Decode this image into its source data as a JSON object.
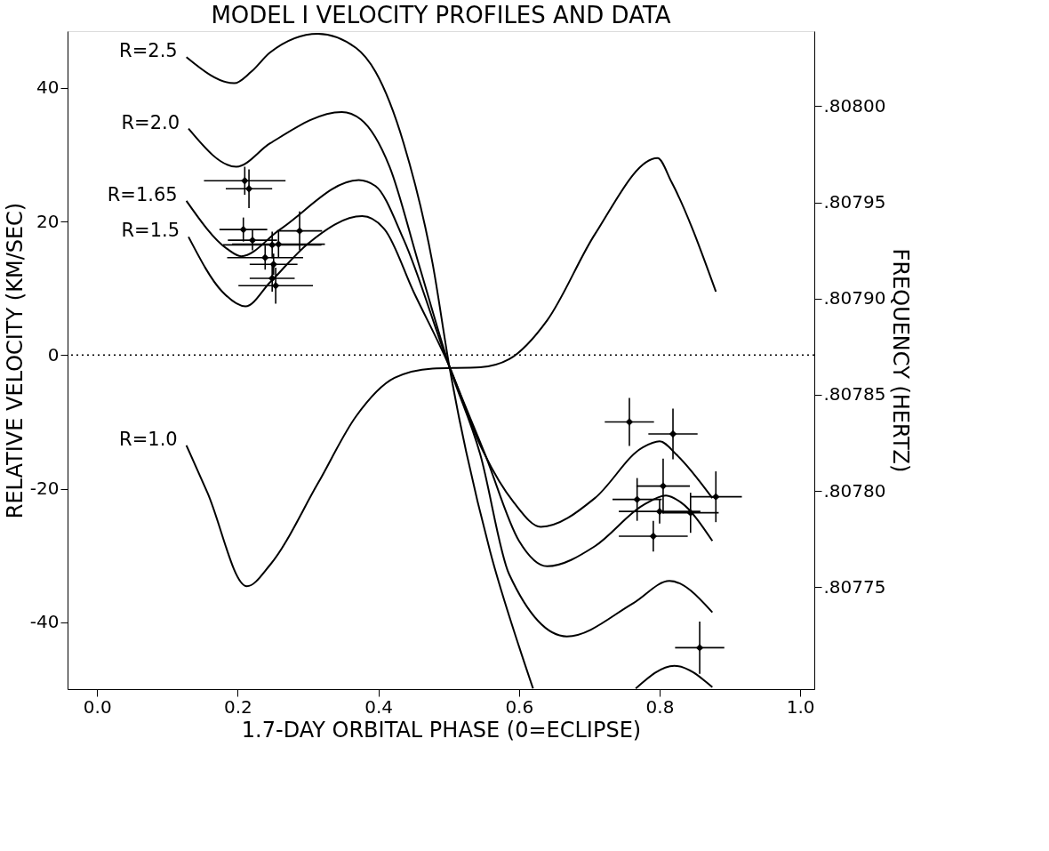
{
  "chart_data": {
    "type": "line",
    "title": "MODEL I VELOCITY PROFILES AND DATA",
    "xlabel": "1.7-DAY ORBITAL PHASE (0=ECLIPSE)",
    "ylabel": "RELATIVE VELOCITY (KM/SEC)",
    "y2label": "FREQUENCY (HERTZ)",
    "xlim": [
      -0.042,
      1.02
    ],
    "ylim": [
      -50,
      48.5
    ],
    "y2lim": [
      0.807697,
      0.808039
    ],
    "xticks": [
      {
        "value": 0,
        "label": "0.0"
      },
      0.2,
      0.4,
      0.6,
      0.8,
      {
        "value": 1,
        "label": "1.0"
      }
    ],
    "yticks": [
      -40,
      -20,
      0,
      20,
      40
    ],
    "y2ticks": [
      {
        "value": 0.80775,
        "label": ".80775"
      },
      {
        "value": 0.8078,
        "label": ".80780"
      },
      {
        "value": 0.80785,
        "label": ".80785"
      },
      {
        "value": 0.8079,
        "label": ".80790"
      },
      {
        "value": 0.80795,
        "label": ".80795"
      },
      {
        "value": 0.808,
        "label": ".80800"
      }
    ],
    "grid": false,
    "line_style": "solid",
    "ref_lines": [
      {
        "axis": "y",
        "value": 0,
        "line_style": "dotted",
        "color": "#000000"
      }
    ],
    "series": [
      {
        "name": "R=2.5",
        "color": "#000000",
        "x": [
          0.127,
          0.195,
          0.219,
          0.246,
          0.314,
          0.368,
          0.396,
          0.436,
          0.477,
          0.501,
          0.559,
          0.6,
          0.62,
          0.69,
          0.766,
          0.821,
          0.875
        ],
        "values": [
          44.6,
          40.7,
          42.4,
          45.3,
          48.1,
          46.0,
          42.4,
          31.7,
          13.8,
          -1.7,
          -29.4,
          -43.6,
          -49.9,
          null,
          -49.9,
          -46.5,
          -49.7
        ]
      },
      {
        "name": "R=2.0",
        "color": "#000000",
        "x": [
          0.13,
          0.198,
          0.246,
          0.348,
          0.375,
          0.416,
          0.457,
          0.501,
          0.545,
          0.586,
          0.668,
          0.763,
          0.814,
          0.875
        ],
        "values": [
          33.9,
          28.2,
          31.7,
          36.4,
          35.3,
          28.2,
          13.8,
          -1.7,
          -14.9,
          -32.8,
          -42.1,
          -37.1,
          -33.8,
          -38.5
        ]
      },
      {
        "name": "R=1.65",
        "color": "#000000",
        "x": [
          0.127,
          0.185,
          0.205,
          0.26,
          0.372,
          0.396,
          0.436,
          0.501,
          0.552,
          0.6,
          0.64,
          0.708,
          0.776,
          0.809,
          0.831,
          0.875
        ],
        "values": [
          23.1,
          15.9,
          14.8,
          18.8,
          26.2,
          25.3,
          17.3,
          -1.7,
          -14.9,
          -27.8,
          -31.6,
          -28.6,
          -22.5,
          -21.0,
          -22.1,
          -27.8
        ]
      },
      {
        "name": "R=1.5",
        "color": "#000000",
        "x": [
          0.13,
          0.178,
          0.211,
          0.246,
          0.3,
          0.377,
          0.409,
          0.45,
          0.501,
          0.545,
          0.593,
          0.631,
          0.708,
          0.776,
          0.8,
          0.824,
          0.875
        ],
        "values": [
          17.7,
          9.5,
          7.3,
          10.9,
          16.7,
          20.8,
          18.8,
          9.5,
          -1.7,
          -13.5,
          -22.1,
          -25.7,
          -21.4,
          -13.8,
          -12.9,
          -14.9,
          -21.4
        ]
      },
      {
        "name": "R=1.0",
        "color": "#000000",
        "x": [
          0.127,
          0.157,
          0.213,
          0.246,
          0.314,
          0.368,
          0.423,
          0.477,
          0.545,
          0.586,
          0.64,
          0.708,
          0.797,
          0.817,
          0.88
        ],
        "values": [
          -13.5,
          -20.6,
          -34.6,
          -31.4,
          -19.2,
          -9.2,
          -3.4,
          -2.0,
          -1.8,
          -0.6,
          5.2,
          18.1,
          29.5,
          25.9,
          9.5
        ]
      },
      {
        "type": "scatter",
        "marker": "diamond",
        "color": "#000000",
        "x": [
          0.21,
          0.216,
          0.208,
          0.221,
          0.288,
          0.239,
          0.249,
          0.258,
          0.251,
          0.249,
          0.254,
          0.757,
          0.819,
          0.805,
          0.768,
          0.8,
          0.844,
          0.88,
          0.791,
          0.857
        ],
        "values": [
          26.1,
          24.9,
          18.8,
          17.2,
          18.6,
          14.6,
          16.5,
          16.6,
          13.6,
          11.5,
          10.4,
          -10.0,
          -11.8,
          -19.6,
          -21.6,
          -23.4,
          -23.6,
          -21.2,
          -27.1,
          -43.8
        ],
        "errors": [
          2.1,
          2.9,
          1.8,
          1.5,
          2.9,
          1.8,
          2.0,
          2.0,
          1.6,
          2.0,
          2.7,
          3.6,
          3.8,
          4.1,
          3.2,
          1.8,
          3.0,
          3.8,
          2.3,
          3.9
        ],
        "xerrors": [
          0.058,
          0.033,
          0.034,
          0.035,
          0.032,
          0.054,
          0.07,
          0.066,
          0.034,
          0.032,
          0.053,
          0.035,
          0.035,
          0.038,
          0.035,
          0.058,
          0.04,
          0.037,
          0.049,
          0.035
        ]
      }
    ]
  }
}
